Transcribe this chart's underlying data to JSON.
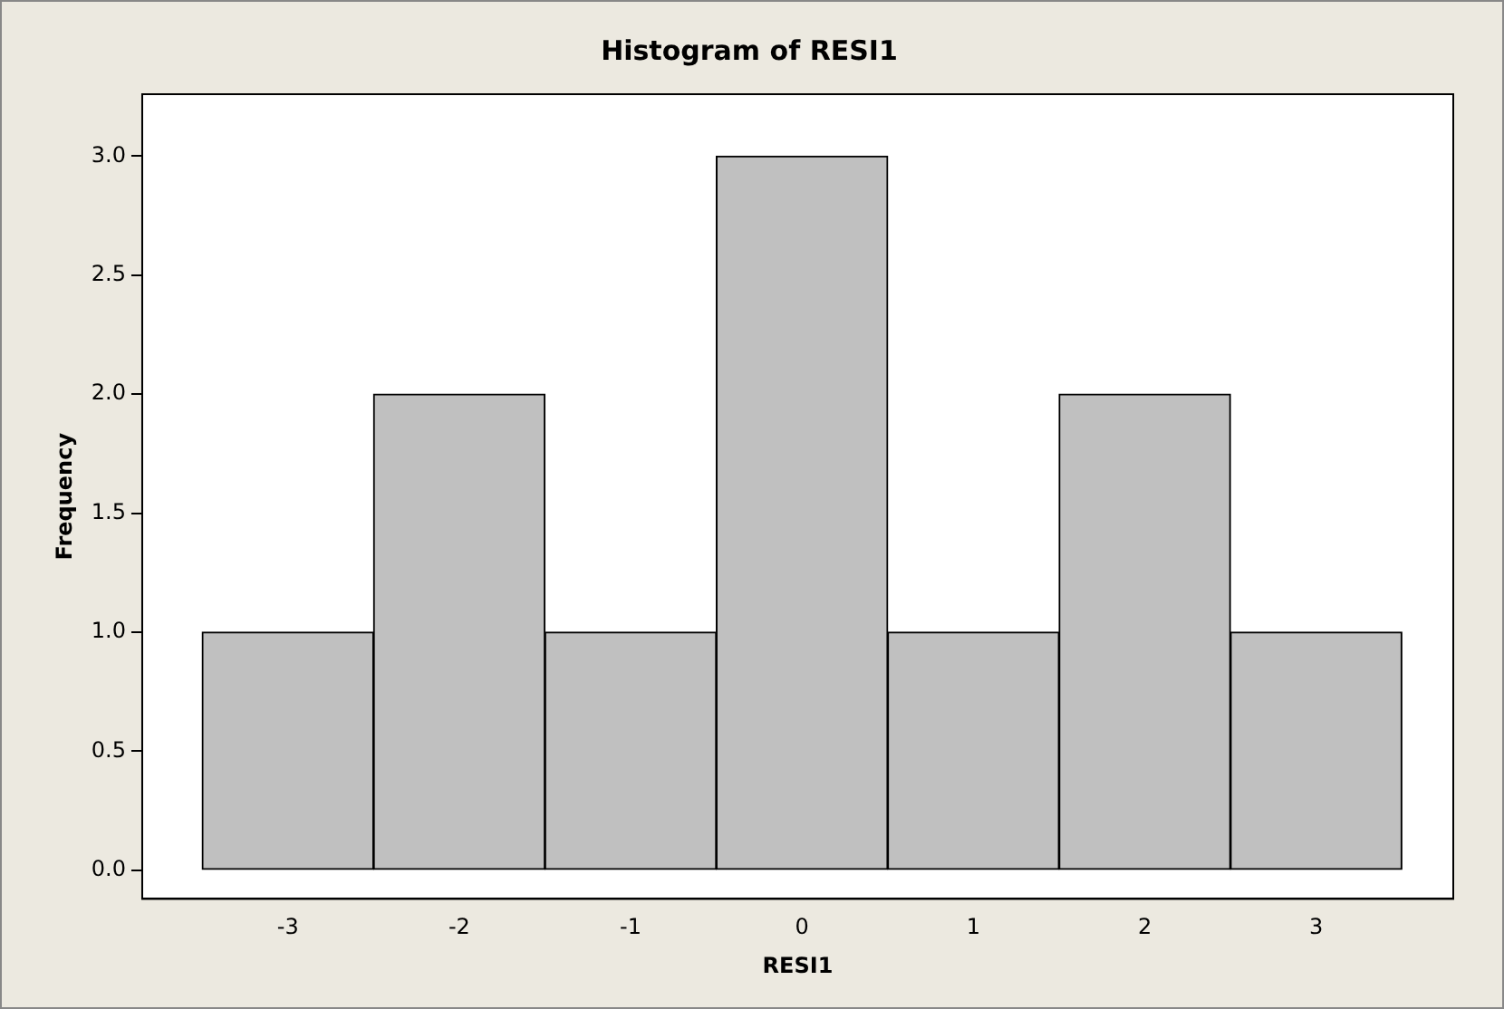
{
  "chart_data": {
    "type": "histogram",
    "title": "Histogram of RESI1",
    "xlabel": "RESI1",
    "ylabel": "Frequency",
    "bins": [
      -3.5,
      -2.5,
      -1.5,
      -0.5,
      0.5,
      1.5,
      2.5,
      3.5
    ],
    "values": [
      1,
      2,
      1,
      3,
      1,
      2,
      1
    ],
    "color": "#c0c0c0",
    "xlim": [
      -3.85,
      3.8
    ],
    "xticks": [
      -3,
      -2,
      -1,
      0,
      1,
      2,
      3
    ],
    "ylim": [
      -0.12,
      3.26
    ],
    "yticks": [
      {
        "value": 0,
        "label": "0.0"
      },
      {
        "value": 0.5,
        "label": "0.5"
      },
      {
        "value": 1,
        "label": "1.0"
      },
      {
        "value": 1.5,
        "label": "1.5"
      },
      {
        "value": 2,
        "label": "2.0"
      },
      {
        "value": 2.5,
        "label": "2.5"
      },
      {
        "value": 3,
        "label": "3.0"
      }
    ],
    "grid": false,
    "legend": false
  }
}
